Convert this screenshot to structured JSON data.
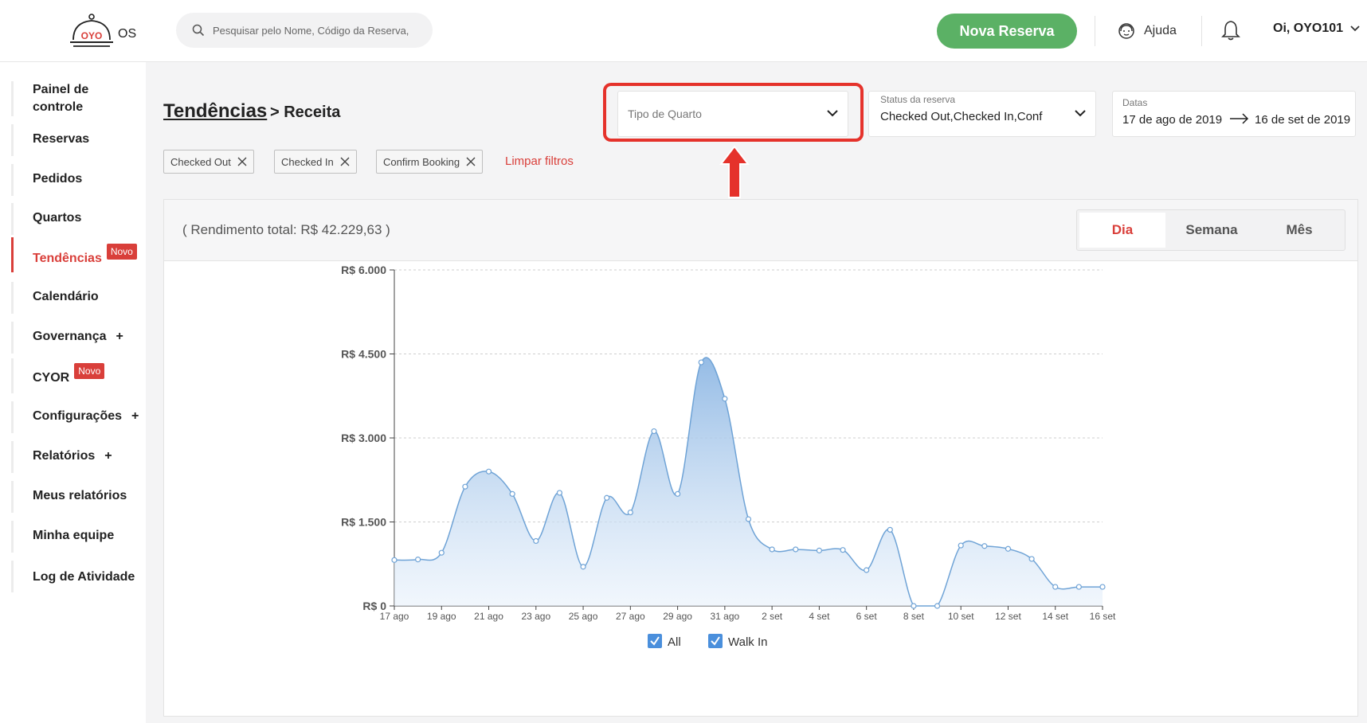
{
  "topbar": {
    "logo_mark": "OYO",
    "logo_suffix": "OS",
    "search_placeholder": "Pesquisar pelo Nome, Código da Reserva,",
    "new_booking": "Nova Reserva",
    "help": "Ajuda",
    "user": "Oi, OYO101"
  },
  "sidebar": {
    "items": [
      {
        "label": "Painel de controle"
      },
      {
        "label": "Reservas"
      },
      {
        "label": "Pedidos"
      },
      {
        "label": "Quartos"
      },
      {
        "label": "Tendências",
        "badge": "Novo",
        "active": true
      },
      {
        "label": "Calendário"
      },
      {
        "label": "Governança",
        "suffix": "+"
      },
      {
        "label": "CYOR",
        "badge": "Novo"
      },
      {
        "label": "Configurações",
        "suffix": "+"
      },
      {
        "label": "Relatórios",
        "suffix": "+"
      },
      {
        "label": "Meus relatórios"
      },
      {
        "label": "Minha equipe"
      },
      {
        "label": "Log de Atividade"
      }
    ]
  },
  "header": {
    "title": "Tendências",
    "subtitle": "> Receita"
  },
  "filters": {
    "room_type_placeholder": "Tipo de Quarto",
    "status_caption": "Status da reserva",
    "status_value": "Checked Out,Checked In,Conf",
    "dates_caption": "Datas",
    "date_from": "17 de ago de 2019",
    "date_to": "16 de set de 2019",
    "chips": [
      "Checked Out",
      "Checked In",
      "Confirm Booking"
    ],
    "clear": "Limpar filtros"
  },
  "card": {
    "total": "( Rendimento total: R$ 42.229,63 )",
    "segments": [
      "Dia",
      "Semana",
      "Mês"
    ],
    "active_segment": "Dia"
  },
  "colors": {
    "accent_red": "#d93f3a",
    "green": "#5bb165",
    "series_line": "#6fa3d6",
    "highlight": "#e5322b"
  },
  "chart_data": {
    "type": "area",
    "ylim": [
      0,
      6000
    ],
    "yticks": [
      0,
      1500,
      3000,
      4500,
      6000
    ],
    "ytick_labels": [
      "R$ 0",
      "R$ 1.500",
      "R$ 3.000",
      "R$ 4.500",
      "R$ 6.000"
    ],
    "x": [
      "17 ago",
      "18 ago",
      "19 ago",
      "20 ago",
      "21 ago",
      "22 ago",
      "23 ago",
      "24 ago",
      "25 ago",
      "26 ago",
      "27 ago",
      "28 ago",
      "29 ago",
      "30 ago",
      "31 ago",
      "1 set",
      "2 set",
      "3 set",
      "4 set",
      "5 set",
      "6 set",
      "7 set",
      "8 set",
      "9 set",
      "10 set",
      "11 set",
      "12 set",
      "13 set",
      "14 set",
      "15 set",
      "16 set"
    ],
    "xtick_labels": [
      "17 ago",
      "19 ago",
      "21 ago",
      "23 ago",
      "25 ago",
      "27 ago",
      "29 ago",
      "31 ago",
      "2 set",
      "4 set",
      "6 set",
      "8 set",
      "10 set",
      "12 set",
      "14 set",
      "16 set"
    ],
    "series": [
      {
        "name": "All",
        "values": [
          820,
          830,
          950,
          2130,
          2400,
          2000,
          1160,
          2020,
          700,
          1930,
          1670,
          3120,
          2000,
          4350,
          3700,
          1550,
          1010,
          1010,
          990,
          1000,
          640,
          1360,
          0,
          0,
          1080,
          1070,
          1020,
          840,
          340,
          340,
          340
        ]
      }
    ],
    "legend": [
      {
        "label": "All",
        "checked": true
      },
      {
        "label": "Walk In",
        "checked": true
      }
    ]
  }
}
